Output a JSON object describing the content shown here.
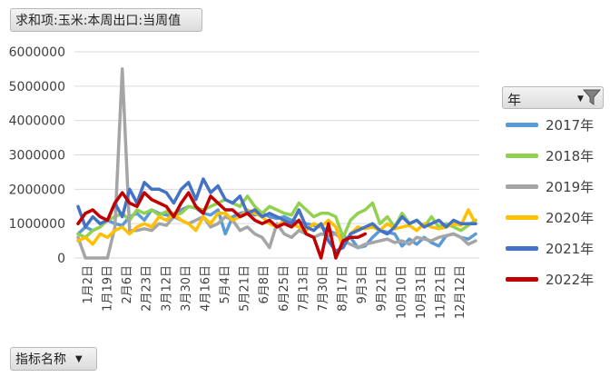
{
  "value_field": "求和项:玉米:本周出口:当周值",
  "bottom_field": "指标名称",
  "legend_title": "年",
  "icons": {
    "dropdown": "chevron-down-icon",
    "filter": "filter-icon"
  },
  "chart_data": {
    "type": "line",
    "title": "",
    "xlabel": "",
    "ylabel": "",
    "ylim": [
      0,
      6000000
    ],
    "yticks": [
      "0",
      "1000000",
      "2000000",
      "3000000",
      "4000000",
      "5000000",
      "6000000"
    ],
    "x_tick_labels": [
      "1月2日",
      "1月19日",
      "2月6日",
      "2月23日",
      "3月12日",
      "3月30日",
      "4月16日",
      "5月4日",
      "5月21日",
      "6月8日",
      "6月25日",
      "7月13日",
      "7月30日",
      "8月17日",
      "9月3日",
      "9月21日",
      "10月10日",
      "10月31日",
      "11月21日",
      "12月12日"
    ],
    "grid": true,
    "legend_position": "right",
    "series": [
      {
        "name": "2017年",
        "color": "#5B9BD5",
        "values": [
          700000,
          900000,
          800000,
          900000,
          1100000,
          1000000,
          950000,
          1200000,
          1300000,
          1100000,
          1400000,
          1300000,
          1250000,
          1200000,
          1400000,
          1500000,
          1450000,
          1300000,
          1250000,
          1400000,
          700000,
          1200000,
          1300000,
          1350000,
          1250000,
          1300000,
          1200000,
          1150000,
          1200000,
          1100000,
          1050000,
          1000000,
          950000,
          900000,
          800000,
          700000,
          600000,
          600000,
          300000,
          350000,
          600000,
          800000,
          750000,
          700000,
          350000,
          550000,
          400000,
          600000,
          450000,
          350000,
          650000,
          700000,
          600000,
          550000,
          700000
        ]
      },
      {
        "name": "2018年",
        "color": "#92D050",
        "values": [
          700000,
          600000,
          800000,
          900000,
          1100000,
          1200000,
          1300000,
          1100000,
          1400000,
          1300000,
          1400000,
          1250000,
          1350000,
          1250000,
          1300000,
          1500000,
          1450000,
          1400000,
          1500000,
          1600000,
          1700000,
          1600000,
          1500000,
          1800000,
          1500000,
          1300000,
          1500000,
          1400000,
          1300000,
          1250000,
          1600000,
          1400000,
          1200000,
          1300000,
          1300000,
          1200000,
          600000,
          1100000,
          1300000,
          1400000,
          1600000,
          1000000,
          1200000,
          900000,
          1300000,
          1000000,
          1100000,
          900000,
          1200000,
          900000,
          1000000,
          900000,
          800000,
          950000,
          1100000
        ]
      },
      {
        "name": "2019年",
        "color": "#A5A5A5",
        "values": [
          600000,
          0,
          0,
          0,
          0,
          900000,
          5500000,
          800000,
          800000,
          850000,
          800000,
          1000000,
          950000,
          1200000,
          1100000,
          1000000,
          1100000,
          1200000,
          900000,
          1000000,
          1200000,
          1100000,
          800000,
          900000,
          700000,
          600000,
          300000,
          1000000,
          700000,
          600000,
          800000,
          700000,
          600000,
          700000,
          650000,
          700000,
          500000,
          400000,
          300000,
          400000,
          450000,
          500000,
          550000,
          450000,
          500000,
          400000,
          600000,
          550000,
          500000,
          600000,
          650000,
          700000,
          600000,
          400000,
          500000
        ]
      },
      {
        "name": "2020年",
        "color": "#FFC000",
        "values": [
          500000,
          600000,
          400000,
          700000,
          600000,
          800000,
          900000,
          700000,
          900000,
          1000000,
          900000,
          1200000,
          1100000,
          1300000,
          1100000,
          1000000,
          800000,
          1200000,
          1000000,
          1300000,
          1300000,
          1100000,
          1200000,
          1400000,
          1300000,
          1200000,
          1000000,
          900000,
          1100000,
          1000000,
          900000,
          800000,
          1000000,
          900000,
          1100000,
          900000,
          300000,
          700000,
          900000,
          850000,
          900000,
          800000,
          1000000,
          850000,
          900000,
          950000,
          800000,
          1000000,
          900000,
          850000,
          900000,
          1000000,
          950000,
          1400000,
          1000000
        ]
      },
      {
        "name": "2021年",
        "color": "#4472C4",
        "values": [
          1500000,
          900000,
          1200000,
          1000000,
          1100000,
          1600000,
          1200000,
          2000000,
          1600000,
          2200000,
          2000000,
          2000000,
          1900000,
          1600000,
          2000000,
          2200000,
          1700000,
          2300000,
          1900000,
          2100000,
          1700000,
          1600000,
          1800000,
          1300000,
          1400000,
          1200000,
          1300000,
          1200000,
          1100000,
          1000000,
          1400000,
          900000,
          800000,
          1000000,
          500000,
          200000,
          300000,
          700000,
          800000,
          900000,
          1000000,
          800000,
          700000,
          900000,
          1200000,
          1000000,
          1100000,
          900000,
          1000000,
          1100000,
          900000,
          1100000,
          1000000,
          1000000,
          1000000
        ]
      },
      {
        "name": "2022年",
        "color": "#C00000",
        "values": [
          1000000,
          1300000,
          1400000,
          1200000,
          1100000,
          1600000,
          1900000,
          1600000,
          1500000,
          1900000,
          1700000,
          1600000,
          1500000,
          1200000,
          1600000,
          1900000,
          1500000,
          1300000,
          1800000,
          1600000,
          1400000,
          1400000,
          1200000,
          1300000,
          1100000,
          1000000,
          1100000,
          900000,
          1000000,
          900000,
          1100000,
          700000,
          600000,
          0,
          1000000,
          0,
          500000,
          600000,
          600000,
          700000
        ]
      }
    ]
  }
}
